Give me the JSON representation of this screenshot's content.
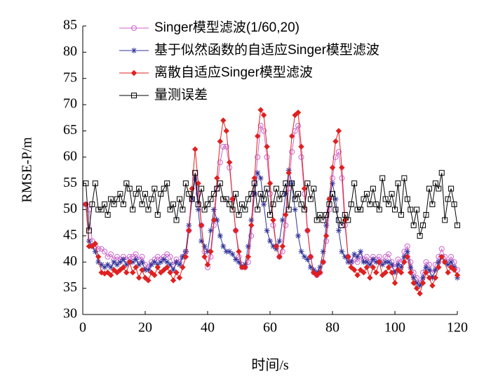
{
  "chart_data": {
    "type": "line",
    "xlabel": "时间/s",
    "ylabel": "RMSE-P/m",
    "x": [
      1,
      2,
      3,
      4,
      5,
      6,
      7,
      8,
      9,
      10,
      11,
      12,
      13,
      14,
      15,
      16,
      17,
      18,
      19,
      20,
      21,
      22,
      23,
      24,
      25,
      26,
      27,
      28,
      29,
      30,
      31,
      32,
      33,
      34,
      35,
      36,
      37,
      38,
      39,
      40,
      41,
      42,
      43,
      44,
      45,
      46,
      47,
      48,
      49,
      50,
      51,
      52,
      53,
      54,
      55,
      56,
      57,
      58,
      59,
      60,
      61,
      62,
      63,
      64,
      65,
      66,
      67,
      68,
      69,
      70,
      71,
      72,
      73,
      74,
      75,
      76,
      77,
      78,
      79,
      80,
      81,
      82,
      83,
      84,
      85,
      86,
      87,
      88,
      89,
      90,
      91,
      92,
      93,
      94,
      95,
      96,
      97,
      98,
      99,
      100,
      101,
      102,
      103,
      104,
      105,
      106,
      107,
      108,
      109,
      110,
      111,
      112,
      113,
      114,
      115,
      116,
      117,
      118,
      119,
      120
    ],
    "series": [
      {
        "name": "Singer模型滤波(1/60,20)",
        "color": "#cc66cc",
        "marker": "circle",
        "values": [
          51,
          50,
          44,
          43,
          42.5,
          42.5,
          42,
          41,
          41.5,
          40.5,
          41,
          40.5,
          41,
          40.5,
          41,
          41,
          41.5,
          40.5,
          41,
          39.5,
          39,
          40,
          40.5,
          41,
          40.5,
          41,
          41.5,
          41,
          39.5,
          40.5,
          40,
          41,
          42,
          46,
          52,
          57,
          53,
          47,
          42,
          39,
          41,
          47,
          54,
          59,
          62,
          62,
          58,
          52,
          46,
          41,
          39.5,
          39,
          40,
          45,
          53,
          60,
          66,
          65,
          60,
          53,
          47,
          43,
          41,
          42,
          47,
          54,
          61,
          65,
          66,
          60,
          53,
          46,
          41,
          38,
          37.5,
          38,
          40,
          44,
          50,
          56,
          60,
          61,
          56,
          47,
          41,
          40,
          40.5,
          40,
          41,
          40.5,
          41,
          40,
          41,
          40.5,
          41,
          40,
          41,
          41.5,
          40,
          39,
          40.5,
          40,
          42,
          43,
          40,
          38,
          37,
          36,
          38,
          40,
          39.5,
          38,
          39.5,
          41,
          42.5,
          41,
          40,
          41,
          40,
          38.5
        ]
      },
      {
        "name": "基于似然函数的自适应Singer模型滤波",
        "color": "#333399",
        "marker": "star",
        "values": [
          51,
          44,
          43,
          42,
          40,
          39.5,
          39,
          39.5,
          39,
          40,
          39.5,
          40,
          40.5,
          39.5,
          40,
          40,
          40.5,
          39.5,
          40,
          38.5,
          38.5,
          39.5,
          40,
          39.5,
          40,
          40.5,
          40,
          39.5,
          38.5,
          40,
          39.5,
          41,
          42,
          47,
          52,
          56,
          50,
          44,
          43,
          42,
          46,
          50,
          48,
          45,
          43,
          42,
          42,
          41.5,
          40.5,
          40,
          39,
          39.5,
          43,
          48,
          53,
          57,
          56,
          51,
          46,
          44,
          43,
          42.5,
          44,
          48,
          53,
          57.5,
          55,
          50,
          45,
          42,
          41,
          40.5,
          39,
          38.5,
          38,
          39,
          42,
          47,
          52,
          55,
          52,
          46,
          42,
          41,
          40,
          40,
          41.5,
          41,
          42,
          40,
          40,
          39.5,
          40.5,
          40,
          40,
          39.5,
          40,
          40,
          39.5,
          38,
          39.5,
          39,
          41,
          42,
          39,
          37,
          36,
          35.5,
          37,
          39,
          38.5,
          37,
          38.5,
          40,
          41,
          40,
          39.5,
          40,
          39,
          37
        ]
      },
      {
        "name": "离散自适应Singer模型滤波",
        "color": "#e02020",
        "marker": "diamond",
        "values": [
          51,
          43,
          43,
          43.5,
          41,
          38,
          37.8,
          38,
          37.5,
          38.5,
          38,
          38.5,
          39,
          38,
          40,
          38,
          39,
          37,
          38.5,
          37,
          36.5,
          38,
          37.5,
          39,
          38,
          38.5,
          39,
          38,
          36.5,
          38,
          37,
          39,
          41,
          46,
          54,
          61.5,
          55,
          47,
          41,
          39.5,
          42,
          48,
          56,
          63,
          67,
          65,
          59,
          52,
          46,
          42,
          39,
          39,
          41,
          47,
          56,
          64,
          69,
          68,
          62,
          55,
          48,
          43,
          41,
          43,
          49,
          57,
          64,
          68,
          68.5,
          62,
          54,
          46,
          41,
          38,
          37.5,
          38,
          40,
          45,
          52,
          58,
          63,
          65,
          58,
          48,
          41,
          39,
          38.5,
          37.5,
          38.5,
          38,
          39,
          37,
          39,
          38,
          40,
          37.5,
          38,
          39,
          38,
          36,
          38.5,
          38,
          40,
          41,
          38,
          36,
          35,
          34,
          36,
          38,
          37,
          35.5,
          37,
          39,
          41,
          40,
          38,
          39,
          38.5,
          37.5
        ]
      },
      {
        "name": "量测误差",
        "color": "#000000",
        "marker": "square",
        "values": [
          55,
          46,
          51,
          55,
          50,
          50,
          51,
          49,
          52,
          51,
          52,
          53,
          51,
          55,
          54,
          50,
          53,
          54,
          51,
          53,
          50,
          52,
          54,
          49,
          53,
          54,
          55,
          50,
          51,
          48,
          52,
          50,
          55,
          53,
          52,
          57,
          51,
          54,
          50,
          51,
          52,
          53,
          54,
          55,
          52,
          52,
          51,
          50,
          53,
          49,
          51,
          50,
          52,
          53,
          55,
          50,
          53,
          52,
          54,
          49,
          51,
          54,
          52,
          53,
          55,
          50,
          55,
          52,
          53,
          51,
          50,
          55,
          52,
          54,
          48,
          49,
          48,
          49,
          51,
          53,
          50,
          48,
          47,
          49,
          48,
          51,
          55,
          50,
          50,
          52,
          53,
          51,
          54,
          51,
          50,
          56,
          52,
          51,
          53,
          50,
          55,
          49,
          56,
          52,
          50,
          47,
          50,
          45,
          47,
          49,
          54,
          51,
          55,
          54,
          57,
          48,
          52,
          54,
          51,
          47
        ]
      }
    ],
    "xlim": [
      0,
      120
    ],
    "xticks": [
      0,
      20,
      40,
      60,
      80,
      100,
      120
    ],
    "ylim": [
      30,
      85
    ],
    "yticks": [
      30,
      35,
      40,
      45,
      50,
      55,
      60,
      65,
      70,
      75,
      80,
      85
    ],
    "legend": "upper left"
  }
}
